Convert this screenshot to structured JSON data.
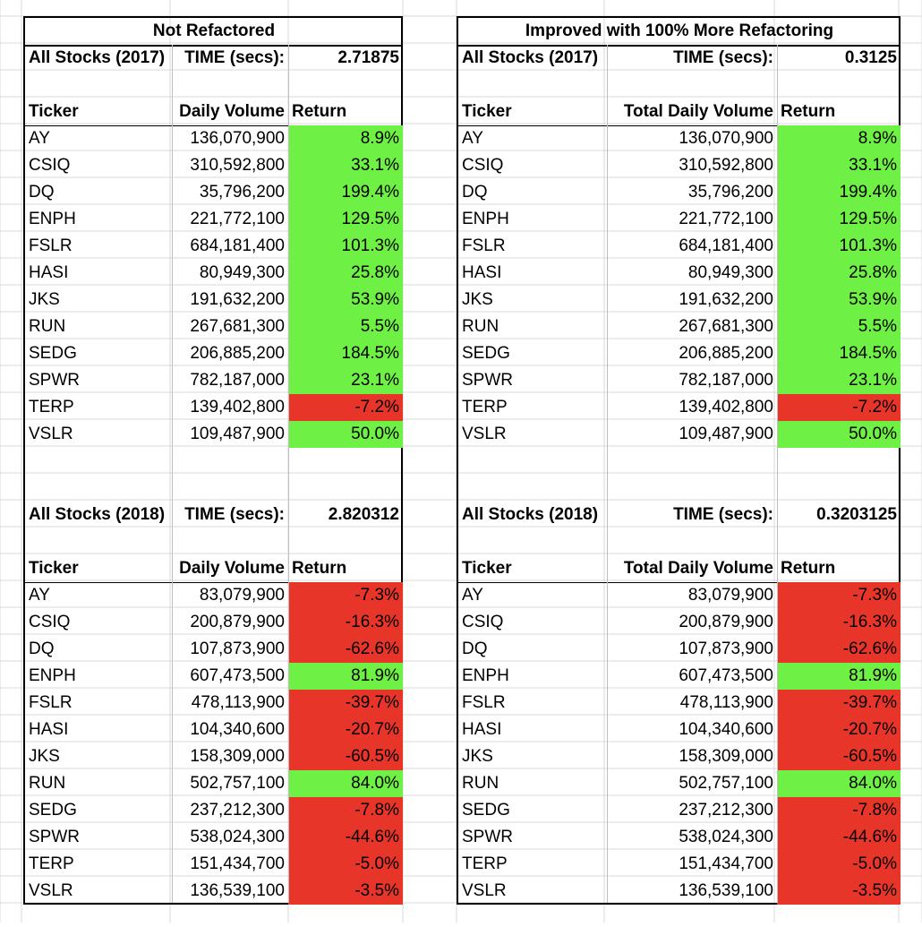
{
  "panels": [
    {
      "title": "Not Refactored",
      "volume_header": "Daily Volume",
      "ticker_header": "Ticker",
      "return_header": "Return",
      "time_label": "TIME (secs):",
      "sections": [
        {
          "label": "All Stocks (2017)",
          "time": "2.71875",
          "rows": [
            {
              "ticker": "AY",
              "volume": "136,070,900",
              "ret": "8.9%",
              "status": "pos"
            },
            {
              "ticker": "CSIQ",
              "volume": "310,592,800",
              "ret": "33.1%",
              "status": "pos"
            },
            {
              "ticker": "DQ",
              "volume": "35,796,200",
              "ret": "199.4%",
              "status": "pos"
            },
            {
              "ticker": "ENPH",
              "volume": "221,772,100",
              "ret": "129.5%",
              "status": "pos"
            },
            {
              "ticker": "FSLR",
              "volume": "684,181,400",
              "ret": "101.3%",
              "status": "pos"
            },
            {
              "ticker": "HASI",
              "volume": "80,949,300",
              "ret": "25.8%",
              "status": "pos"
            },
            {
              "ticker": "JKS",
              "volume": "191,632,200",
              "ret": "53.9%",
              "status": "pos"
            },
            {
              "ticker": "RUN",
              "volume": "267,681,300",
              "ret": "5.5%",
              "status": "pos"
            },
            {
              "ticker": "SEDG",
              "volume": "206,885,200",
              "ret": "184.5%",
              "status": "pos"
            },
            {
              "ticker": "SPWR",
              "volume": "782,187,000",
              "ret": "23.1%",
              "status": "pos"
            },
            {
              "ticker": "TERP",
              "volume": "139,402,800",
              "ret": "-7.2%",
              "status": "neg"
            },
            {
              "ticker": "VSLR",
              "volume": "109,487,900",
              "ret": "50.0%",
              "status": "pos"
            }
          ]
        },
        {
          "label": "All Stocks (2018)",
          "time": "2.820312",
          "rows": [
            {
              "ticker": "AY",
              "volume": "83,079,900",
              "ret": "-7.3%",
              "status": "neg"
            },
            {
              "ticker": "CSIQ",
              "volume": "200,879,900",
              "ret": "-16.3%",
              "status": "neg"
            },
            {
              "ticker": "DQ",
              "volume": "107,873,900",
              "ret": "-62.6%",
              "status": "neg"
            },
            {
              "ticker": "ENPH",
              "volume": "607,473,500",
              "ret": "81.9%",
              "status": "pos"
            },
            {
              "ticker": "FSLR",
              "volume": "478,113,900",
              "ret": "-39.7%",
              "status": "neg"
            },
            {
              "ticker": "HASI",
              "volume": "104,340,600",
              "ret": "-20.7%",
              "status": "neg"
            },
            {
              "ticker": "JKS",
              "volume": "158,309,000",
              "ret": "-60.5%",
              "status": "neg"
            },
            {
              "ticker": "RUN",
              "volume": "502,757,100",
              "ret": "84.0%",
              "status": "pos"
            },
            {
              "ticker": "SEDG",
              "volume": "237,212,300",
              "ret": "-7.8%",
              "status": "neg"
            },
            {
              "ticker": "SPWR",
              "volume": "538,024,300",
              "ret": "-44.6%",
              "status": "neg"
            },
            {
              "ticker": "TERP",
              "volume": "151,434,700",
              "ret": "-5.0%",
              "status": "neg"
            },
            {
              "ticker": "VSLR",
              "volume": "136,539,100",
              "ret": "-3.5%",
              "status": "neg"
            }
          ]
        }
      ]
    },
    {
      "title": "Improved with 100% More Refactoring",
      "volume_header": "Total Daily Volume",
      "ticker_header": "Ticker",
      "return_header": "Return",
      "time_label": "TIME (secs):",
      "sections": [
        {
          "label": "All Stocks (2017)",
          "time": "0.3125",
          "rows": [
            {
              "ticker": "AY",
              "volume": "136,070,900",
              "ret": "8.9%",
              "status": "pos"
            },
            {
              "ticker": "CSIQ",
              "volume": "310,592,800",
              "ret": "33.1%",
              "status": "pos"
            },
            {
              "ticker": "DQ",
              "volume": "35,796,200",
              "ret": "199.4%",
              "status": "pos"
            },
            {
              "ticker": "ENPH",
              "volume": "221,772,100",
              "ret": "129.5%",
              "status": "pos"
            },
            {
              "ticker": "FSLR",
              "volume": "684,181,400",
              "ret": "101.3%",
              "status": "pos"
            },
            {
              "ticker": "HASI",
              "volume": "80,949,300",
              "ret": "25.8%",
              "status": "pos"
            },
            {
              "ticker": "JKS",
              "volume": "191,632,200",
              "ret": "53.9%",
              "status": "pos"
            },
            {
              "ticker": "RUN",
              "volume": "267,681,300",
              "ret": "5.5%",
              "status": "pos"
            },
            {
              "ticker": "SEDG",
              "volume": "206,885,200",
              "ret": "184.5%",
              "status": "pos"
            },
            {
              "ticker": "SPWR",
              "volume": "782,187,000",
              "ret": "23.1%",
              "status": "pos"
            },
            {
              "ticker": "TERP",
              "volume": "139,402,800",
              "ret": "-7.2%",
              "status": "neg"
            },
            {
              "ticker": "VSLR",
              "volume": "109,487,900",
              "ret": "50.0%",
              "status": "pos"
            }
          ]
        },
        {
          "label": "All Stocks (2018)",
          "time": "0.3203125",
          "rows": [
            {
              "ticker": "AY",
              "volume": "83,079,900",
              "ret": "-7.3%",
              "status": "neg"
            },
            {
              "ticker": "CSIQ",
              "volume": "200,879,900",
              "ret": "-16.3%",
              "status": "neg"
            },
            {
              "ticker": "DQ",
              "volume": "107,873,900",
              "ret": "-62.6%",
              "status": "neg"
            },
            {
              "ticker": "ENPH",
              "volume": "607,473,500",
              "ret": "81.9%",
              "status": "pos"
            },
            {
              "ticker": "FSLR",
              "volume": "478,113,900",
              "ret": "-39.7%",
              "status": "neg"
            },
            {
              "ticker": "HASI",
              "volume": "104,340,600",
              "ret": "-20.7%",
              "status": "neg"
            },
            {
              "ticker": "JKS",
              "volume": "158,309,000",
              "ret": "-60.5%",
              "status": "neg"
            },
            {
              "ticker": "RUN",
              "volume": "502,757,100",
              "ret": "84.0%",
              "status": "pos"
            },
            {
              "ticker": "SEDG",
              "volume": "237,212,300",
              "ret": "-7.8%",
              "status": "neg"
            },
            {
              "ticker": "SPWR",
              "volume": "538,024,300",
              "ret": "-44.6%",
              "status": "neg"
            },
            {
              "ticker": "TERP",
              "volume": "151,434,700",
              "ret": "-5.0%",
              "status": "neg"
            },
            {
              "ticker": "VSLR",
              "volume": "136,539,100",
              "ret": "-3.5%",
              "status": "neg"
            }
          ]
        }
      ]
    }
  ],
  "colors": {
    "positive": "#6ff045",
    "negative": "#e8352a",
    "gridline": "#d9d9d9"
  }
}
